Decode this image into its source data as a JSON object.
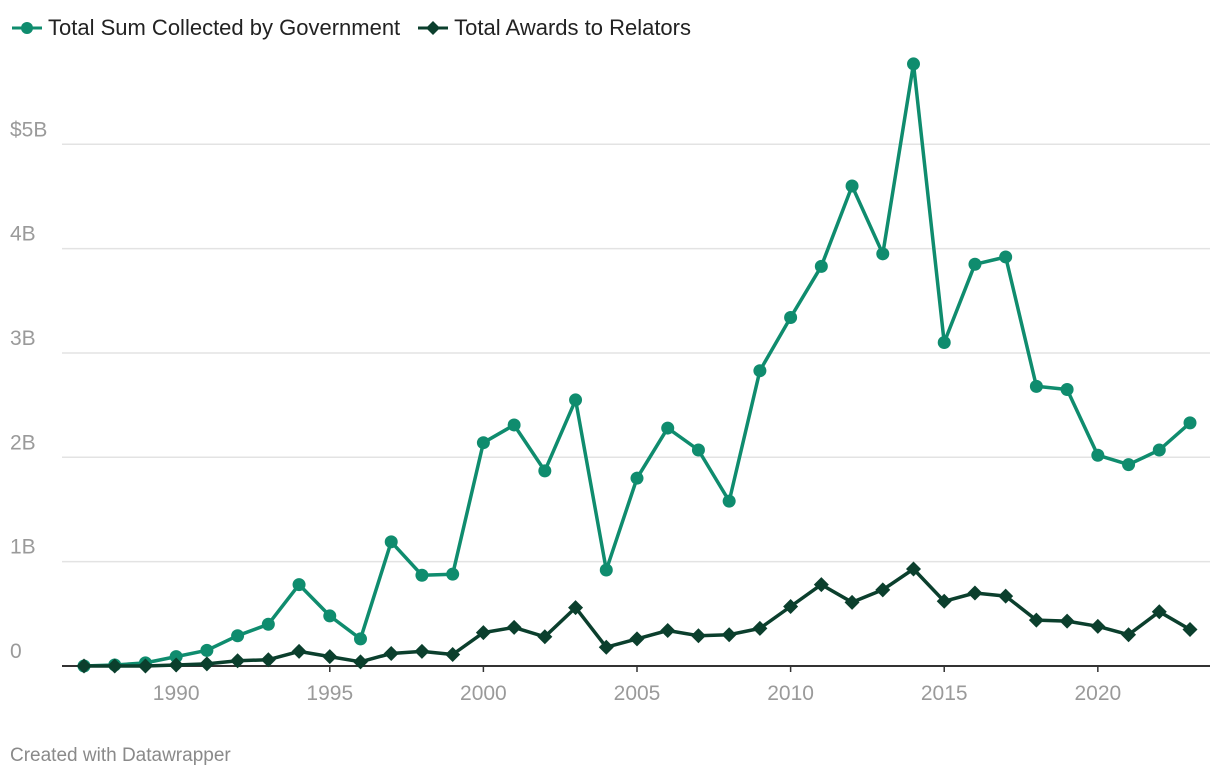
{
  "chart_data": {
    "type": "line",
    "title": "",
    "xlabel": "",
    "ylabel": "",
    "xlim": [
      1987,
      2023
    ],
    "ylim": [
      0,
      5.75
    ],
    "y_ticks": [
      {
        "value": 0,
        "label": "0"
      },
      {
        "value": 1,
        "label": "1B"
      },
      {
        "value": 2,
        "label": "2B"
      },
      {
        "value": 3,
        "label": "3B"
      },
      {
        "value": 4,
        "label": "4B"
      },
      {
        "value": 5,
        "label": "$5B"
      }
    ],
    "x_ticks": [
      {
        "value": 1990,
        "label": "1990"
      },
      {
        "value": 1995,
        "label": "1995"
      },
      {
        "value": 2000,
        "label": "2000"
      },
      {
        "value": 2005,
        "label": "2005"
      },
      {
        "value": 2010,
        "label": "2010"
      },
      {
        "value": 2015,
        "label": "2015"
      },
      {
        "value": 2020,
        "label": "2020"
      }
    ],
    "x": [
      1987,
      1988,
      1989,
      1990,
      1991,
      1992,
      1993,
      1994,
      1995,
      1996,
      1997,
      1998,
      1999,
      2000,
      2001,
      2002,
      2003,
      2004,
      2005,
      2006,
      2007,
      2008,
      2009,
      2010,
      2011,
      2012,
      2013,
      2014,
      2015,
      2016,
      2017,
      2018,
      2019,
      2020,
      2021,
      2022,
      2023
    ],
    "series": [
      {
        "name": "Total Sum Collected by Government",
        "color": "#0f8c6e",
        "marker": "circle",
        "values": [
          0.0,
          0.01,
          0.03,
          0.09,
          0.15,
          0.29,
          0.4,
          0.78,
          0.48,
          0.26,
          1.19,
          0.87,
          0.88,
          2.14,
          2.31,
          1.87,
          2.55,
          0.92,
          1.8,
          2.28,
          2.07,
          1.58,
          2.83,
          3.34,
          3.83,
          4.6,
          3.95,
          5.77,
          3.1,
          3.85,
          3.92,
          2.68,
          2.65,
          2.02,
          1.93,
          2.07,
          2.33
        ]
      },
      {
        "name": "Total Awards to Relators",
        "color": "#0b3f2d",
        "marker": "diamond",
        "values": [
          0.0,
          0.0,
          0.0,
          0.01,
          0.02,
          0.05,
          0.06,
          0.14,
          0.09,
          0.04,
          0.12,
          0.14,
          0.11,
          0.32,
          0.37,
          0.28,
          0.56,
          0.18,
          0.26,
          0.34,
          0.29,
          0.3,
          0.36,
          0.57,
          0.78,
          0.61,
          0.73,
          0.93,
          0.62,
          0.7,
          0.67,
          0.44,
          0.43,
          0.38,
          0.3,
          0.52,
          0.35
        ]
      }
    ],
    "legend_position": "top-left"
  },
  "footer": {
    "credit": "Created with Datawrapper"
  }
}
